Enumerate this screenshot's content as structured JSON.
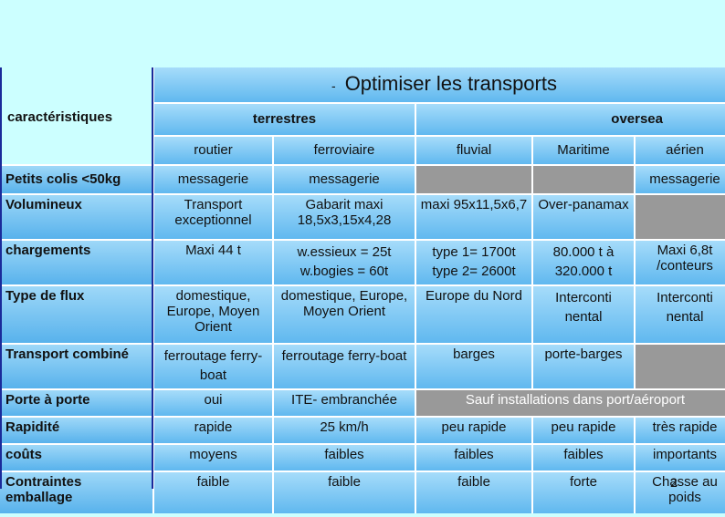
{
  "title": "Optimiser les transports",
  "title_bullet": "-",
  "header": {
    "caracteristiques": "caractéristiques",
    "terrestres": "terrestres",
    "oversea": "oversea",
    "modes": [
      "routier",
      "ferroviaire",
      "fluvial",
      "Maritime",
      "aérien"
    ]
  },
  "rows": [
    {
      "label": "Petits colis <50kg",
      "routier": "messagerie",
      "ferroviaire": "messagerie",
      "aerien": "messagerie"
    },
    {
      "label": "Volumineux",
      "routier": "Transport exceptionnel",
      "ferroviaire": "Gabarit maxi 18,5x3,15x4,28",
      "fluvial": "maxi 95x11,5x6,7",
      "maritime": "Over-panamax"
    },
    {
      "label": "chargements",
      "routier": "Maxi 44 t",
      "ferroviaire": "w.essieux = 25t w.bogies = 60t",
      "fluvial": "type 1= 1700t type 2= 2600t",
      "maritime": "80.000 t à 320.000 t",
      "aerien": "Maxi 6,8t /conteurs"
    },
    {
      "label": "Type de flux",
      "routier": "domestique, Europe, Moyen Orient",
      "ferroviaire": "domestique, Europe, Moyen Orient",
      "fluvial": "Europe du Nord",
      "maritime": "Interconti nental",
      "aerien": "Interconti nental"
    },
    {
      "label": "Transport combiné",
      "routier": "ferroutage ferry-boat",
      "ferroviaire": "ferroutage ferry-boat",
      "fluvial": "barges",
      "maritime": "porte-barges"
    },
    {
      "label": "Porte à porte",
      "routier": "oui",
      "ferroviaire": "ITE- embranchée",
      "oversea_span": "Sauf installations dans port/aéroport"
    },
    {
      "label": "Rapidité",
      "routier": "rapide",
      "ferroviaire": "25 km/h",
      "fluvial": "peu rapide",
      "maritime": "peu rapide",
      "aerien": "très rapide"
    },
    {
      "label": "coûts",
      "routier": "moyens",
      "ferroviaire": "faibles",
      "fluvial": "faibles",
      "maritime": "faibles",
      "aerien": "importants"
    },
    {
      "label": "Contraintes emballage",
      "routier": "faible",
      "ferroviaire": "faible",
      "fluvial": "faible",
      "maritime": "forte",
      "aerien": "Chasse au poids"
    }
  ],
  "slide_number": "2",
  "colors": {
    "page_bg": "#ccffff",
    "cell_top": "#a6dcfa",
    "cell_bottom": "#60b8ef",
    "gray": "#999999",
    "border": "#1a2a9a"
  }
}
